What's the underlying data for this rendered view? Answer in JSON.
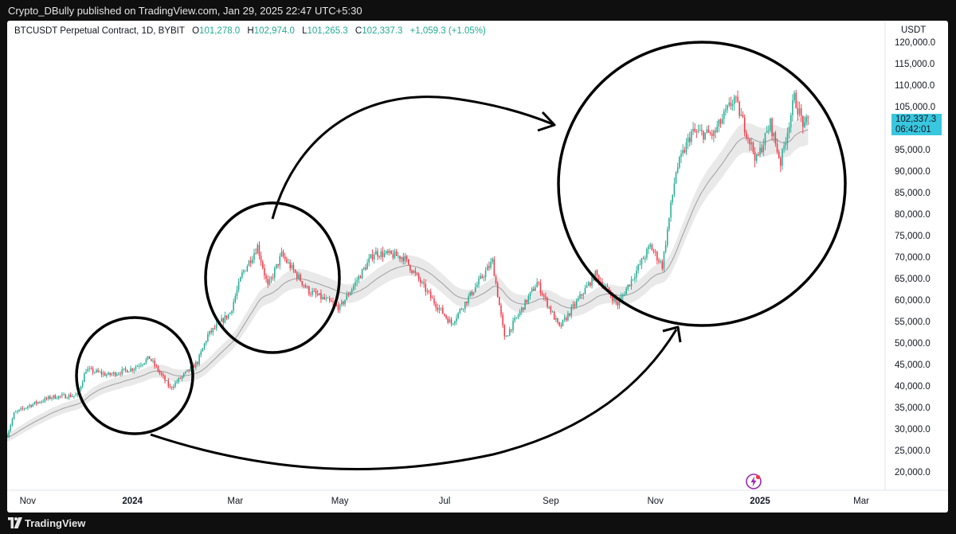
{
  "header": {
    "publisher_line": "Crypto_DBully published on TradingView.com, Jan 29, 2025 22:47 UTC+5:30"
  },
  "legend": {
    "symbol": "BTCUSDT Perpetual Contract, 1D, BYBIT",
    "open_label": "O",
    "open": "101,278.0",
    "high_label": "H",
    "high": "102,974.0",
    "low_label": "L",
    "low": "101,265.3",
    "close_label": "C",
    "close": "102,337.3",
    "change": "+1,059.3 (+1.05%)"
  },
  "price_axis": {
    "unit": "USDT",
    "last_price": "102,337.3",
    "countdown": "06:42:01"
  },
  "footer": {
    "brand": "TradingView"
  },
  "colors": {
    "up": "#22ab94",
    "down": "#f23645",
    "ema": "#9e9e9e",
    "band": "#e9e9e9",
    "badge": "#38c7df",
    "annotation": "#000000",
    "flash_icon": "#9c27b0"
  },
  "annotations": {
    "circles": 3,
    "arrows": 2,
    "description_free": true
  },
  "chart_data": {
    "type": "candlestick",
    "title": "",
    "xlabel": "",
    "ylabel": "",
    "ylim": [
      15700,
      125000
    ],
    "yticks": [
      20000,
      25000,
      30000,
      35000,
      40000,
      45000,
      50000,
      55000,
      60000,
      65000,
      70000,
      75000,
      80000,
      85000,
      90000,
      95000,
      100000,
      105000,
      110000,
      115000,
      120000
    ],
    "ytick_labels": [
      "20,000.0",
      "25,000.0",
      "30,000.0",
      "35,000.0",
      "40,000.0",
      "45,000.0",
      "50,000.0",
      "55,000.0",
      "60,000.0",
      "65,000.0",
      "70,000.0",
      "75,000.0",
      "80,000.0",
      "85,000.0",
      "90,000.0",
      "95,000.0",
      "100,000.0",
      "105,000.0",
      "110,000.0",
      "115,000.0",
      "120,000.0"
    ],
    "xrange": [
      "2023-10-20",
      "2025-03-14"
    ],
    "xticks": [
      {
        "date": "2023-11-01",
        "label": "Nov",
        "bold": false
      },
      {
        "date": "2024-01-01",
        "label": "2024",
        "bold": true
      },
      {
        "date": "2024-03-01",
        "label": "Mar",
        "bold": false
      },
      {
        "date": "2024-05-01",
        "label": "May",
        "bold": false
      },
      {
        "date": "2024-07-01",
        "label": "Jul",
        "bold": false
      },
      {
        "date": "2024-09-01",
        "label": "Sep",
        "bold": false
      },
      {
        "date": "2024-11-01",
        "label": "Nov",
        "bold": false
      },
      {
        "date": "2025-01-01",
        "label": "2025",
        "bold": true
      },
      {
        "date": "2025-03-01",
        "label": "Mar",
        "bold": false
      }
    ],
    "price_path": [
      {
        "date": "2023-10-20",
        "close": 28500
      },
      {
        "date": "2023-10-24",
        "close": 33500
      },
      {
        "date": "2023-11-01",
        "close": 35300
      },
      {
        "date": "2023-11-15",
        "close": 37400
      },
      {
        "date": "2023-11-30",
        "close": 37800
      },
      {
        "date": "2023-12-05",
        "close": 43800
      },
      {
        "date": "2023-12-18",
        "close": 42500
      },
      {
        "date": "2024-01-01",
        "close": 44000
      },
      {
        "date": "2024-01-11",
        "close": 46500
      },
      {
        "date": "2024-01-23",
        "close": 39500
      },
      {
        "date": "2024-02-08",
        "close": 45500
      },
      {
        "date": "2024-02-14",
        "close": 51800
      },
      {
        "date": "2024-02-27",
        "close": 57000
      },
      {
        "date": "2024-03-05",
        "close": 66000
      },
      {
        "date": "2024-03-14",
        "close": 72500
      },
      {
        "date": "2024-03-20",
        "close": 63000
      },
      {
        "date": "2024-03-28",
        "close": 70500
      },
      {
        "date": "2024-04-13",
        "close": 62000
      },
      {
        "date": "2024-05-01",
        "close": 58200
      },
      {
        "date": "2024-05-21",
        "close": 71000
      },
      {
        "date": "2024-06-07",
        "close": 70000
      },
      {
        "date": "2024-06-24",
        "close": 60000
      },
      {
        "date": "2024-07-05",
        "close": 54500
      },
      {
        "date": "2024-07-29",
        "close": 69000
      },
      {
        "date": "2024-08-05",
        "close": 51000
      },
      {
        "date": "2024-08-24",
        "close": 64000
      },
      {
        "date": "2024-09-06",
        "close": 53500
      },
      {
        "date": "2024-09-27",
        "close": 66000
      },
      {
        "date": "2024-10-10",
        "close": 59000
      },
      {
        "date": "2024-10-29",
        "close": 72500
      },
      {
        "date": "2024-11-05",
        "close": 68000
      },
      {
        "date": "2024-11-13",
        "close": 90000
      },
      {
        "date": "2024-11-22",
        "close": 99000
      },
      {
        "date": "2024-12-05",
        "close": 98500
      },
      {
        "date": "2024-12-17",
        "close": 107000
      },
      {
        "date": "2024-12-30",
        "close": 92500
      },
      {
        "date": "2025-01-07",
        "close": 101000
      },
      {
        "date": "2025-01-13",
        "close": 92000
      },
      {
        "date": "2025-01-21",
        "close": 107000
      },
      {
        "date": "2025-01-27",
        "close": 100000
      },
      {
        "date": "2025-01-29",
        "close": 102337.3
      }
    ]
  }
}
